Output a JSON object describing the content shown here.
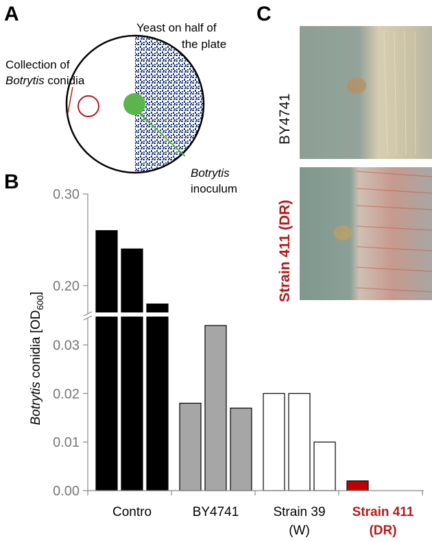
{
  "panels": {
    "a": "A",
    "b": "B",
    "c": "C"
  },
  "plate": {
    "yeast_label_line1": "Yeast on half of",
    "yeast_label_line2": "the plate",
    "collection_line1": "Collection of",
    "collection_italic": "Botrytis",
    "collection_rest": " conidia",
    "inoculum_line1": "Botrytis",
    "inoculum_line2": "inoculum",
    "colors": {
      "outline": "#000000",
      "collection_circle": "#b31b1b",
      "inoculum": "#5cb54a",
      "yeast_pattern": "#1f3a73"
    }
  },
  "photos": {
    "top_label": "BY4741",
    "bottom_label": "Strain 411 (DR)"
  },
  "chart_data": {
    "type": "bar",
    "ylabel_italic": "Botrytis",
    "ylabel_rest": " conidia [OD",
    "ylabel_sub": "600",
    "ylabel_end": "]",
    "axis_break": true,
    "y_lower": {
      "range": [
        0,
        0.035
      ],
      "ticks": [
        "0.00",
        "0.01",
        "0.02",
        "0.03"
      ],
      "tick_values": [
        0,
        0.01,
        0.02,
        0.03
      ]
    },
    "y_upper": {
      "range": [
        0.17,
        0.3
      ],
      "ticks": [
        "0.20",
        "0.30"
      ],
      "tick_values": [
        0.2,
        0.3
      ]
    },
    "groups": [
      {
        "label": "Contro",
        "label2": "",
        "color": "#000000",
        "label_color": "#000000",
        "bold": false,
        "values": [
          0.26,
          0.24,
          0.18
        ]
      },
      {
        "label": "BY4741",
        "label2": "",
        "color": "#a6a6a6",
        "label_color": "#000000",
        "bold": false,
        "values": [
          0.018,
          0.034,
          0.017
        ]
      },
      {
        "label": "Strain 39",
        "label2": "(W)",
        "color": "#ffffff",
        "label_color": "#000000",
        "bold": false,
        "values": [
          0.02,
          0.02,
          0.01
        ]
      },
      {
        "label": "Strain 411",
        "label2": "(DR)",
        "color": "#c00000",
        "label_color": "#b31b1b",
        "bold": true,
        "values": [
          0.002,
          0,
          0
        ]
      }
    ]
  }
}
